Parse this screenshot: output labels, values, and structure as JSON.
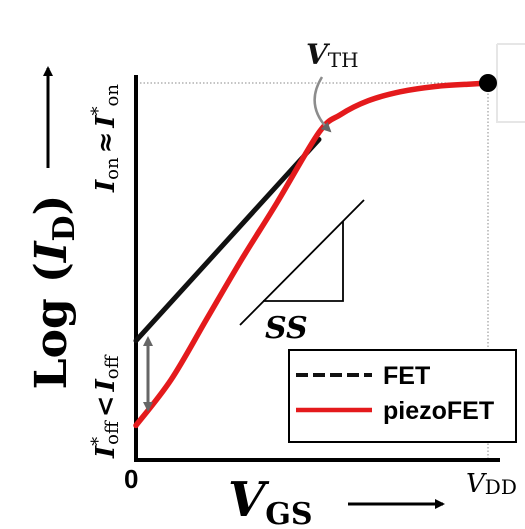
{
  "chart_data": {
    "type": "line",
    "ylabel": {
      "prefix": "Log (",
      "var": "I",
      "sub": "D",
      "suffix": ")"
    },
    "xlabel": {
      "var": "V",
      "sub": "GS"
    },
    "x_ticks": {
      "zero": "0",
      "vdd_var": "V",
      "vdd_sub": "DD"
    },
    "y_annotations": {
      "on": {
        "var": "I",
        "sub": "on",
        "op": "≈",
        "var2": "I",
        "sup2": "*",
        "sub2": "on"
      },
      "off": {
        "var": "I",
        "sup": "*",
        "sub": "off",
        "op": "<",
        "var2": "I",
        "sub2": "off"
      }
    },
    "annotations": {
      "vth": {
        "var": "V",
        "sub": "TH"
      },
      "ss": "SS"
    },
    "legend": {
      "placement": "bottom-right",
      "entries": [
        "FET",
        "piezoFET"
      ]
    },
    "series": [
      {
        "name": "FET",
        "color": "#111111",
        "style": "solid",
        "x": [
          0,
          0.52
        ],
        "y": [
          0.27,
          0.84
        ]
      },
      {
        "name": "piezoFET",
        "color": "#e41a1c",
        "style": "solid",
        "x": [
          0,
          0.1,
          0.2,
          0.3,
          0.4,
          0.52,
          0.58,
          0.66,
          0.75,
          0.85,
          0.95,
          1.0
        ],
        "y": [
          0.03,
          0.16,
          0.33,
          0.5,
          0.66,
          0.86,
          0.91,
          0.95,
          0.975,
          0.99,
          0.997,
          1.0
        ]
      }
    ],
    "xlim": [
      0,
      1
    ],
    "ylim": [
      0,
      1
    ],
    "colors": {
      "fet": "#111111",
      "piezofet": "#e41a1c",
      "arrow": "#666666"
    }
  }
}
